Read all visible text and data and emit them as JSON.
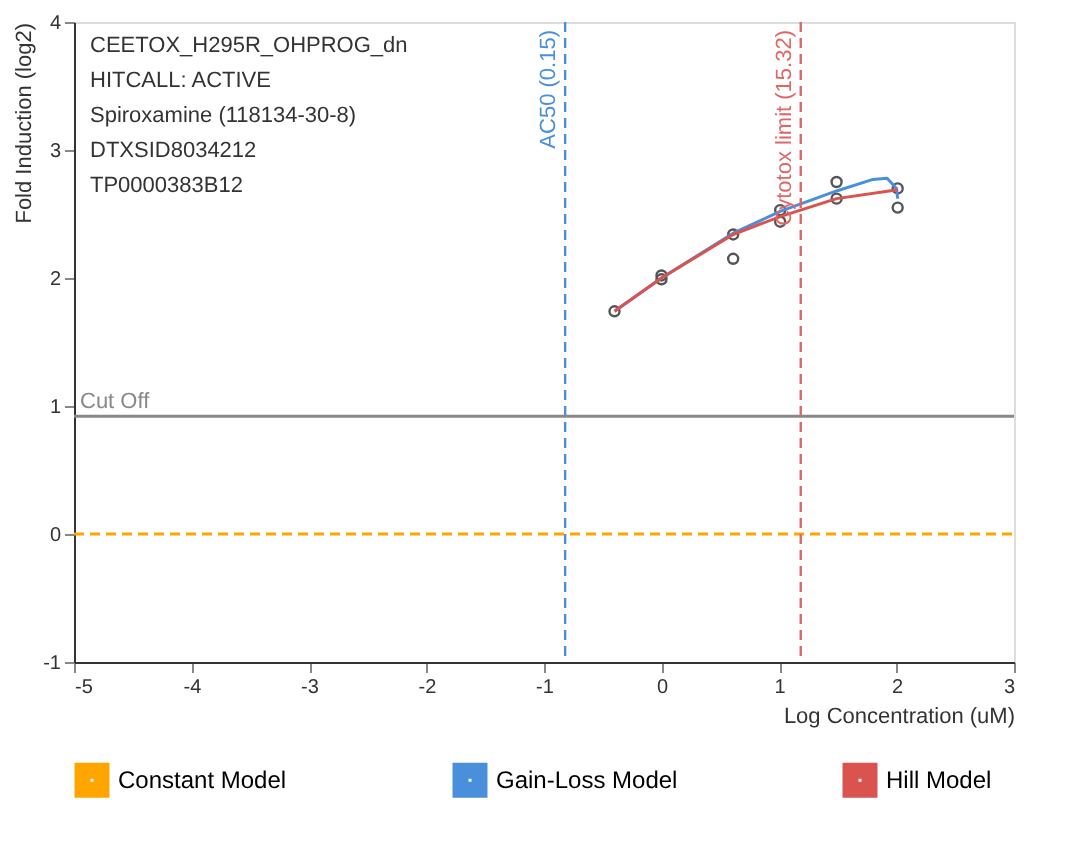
{
  "chart_data": {
    "type": "scatter",
    "xlabel": "Log Concentration (uM)",
    "ylabel": "Fold Induction (log2)",
    "xlim": [
      -5,
      3
    ],
    "xticks": [
      -5,
      -4,
      -3,
      -2,
      -1,
      0,
      1,
      2,
      3
    ],
    "ylim": [
      -1,
      4
    ],
    "yticks": [
      -1,
      0,
      1,
      2,
      3,
      4
    ],
    "series": [
      {
        "color": "#555555",
        "marker": "circle",
        "x": [
          -0.4,
          0.0,
          0.0,
          0.61,
          0.61,
          1.01,
          1.01,
          1.49,
          1.49,
          2.01,
          2.01
        ],
        "values": [
          1.74,
          2.02,
          1.99,
          2.34,
          2.15,
          2.53,
          2.44,
          2.75,
          2.62,
          2.7,
          2.55
        ]
      },
      {
        "name": "Constant Model",
        "color": "#ffa500",
        "type": "line",
        "line_style": "dashed",
        "marker": "none",
        "x": [
          -5,
          3
        ],
        "values": [
          0,
          0
        ]
      },
      {
        "name": "Gain-Loss Model",
        "color": "#4a8fdc",
        "type": "line",
        "line_style": "solid",
        "marker": "none",
        "x": [
          -0.4,
          0.0,
          0.61,
          1.01,
          1.49,
          1.8,
          1.92,
          2.0,
          2.01
        ],
        "values": [
          1.74,
          2.0,
          2.35,
          2.52,
          2.68,
          2.77,
          2.78,
          2.7,
          2.62
        ]
      },
      {
        "name": "Hill Model",
        "color": "#d9534f",
        "type": "line",
        "line_style": "solid",
        "marker": "none",
        "x": [
          -0.4,
          0.0,
          0.61,
          1.01,
          1.49,
          2.01
        ],
        "values": [
          1.74,
          2.0,
          2.34,
          2.48,
          2.62,
          2.69
        ]
      }
    ],
    "ref_lines": [
      {
        "axis": "x",
        "value": -0.82,
        "label": "AC50 (0.15)",
        "color": "#4a8fdc",
        "line_style": "dashed"
      },
      {
        "axis": "x",
        "value": 1.185,
        "label": "Cytotox limit (15.32)",
        "color": "#e06666",
        "line_style": "dashed"
      },
      {
        "axis": "y",
        "value": 0.92,
        "label": "Cut Off",
        "color": "#888888",
        "line_style": "solid"
      }
    ],
    "annotations": [
      "CEETOX_H295R_OHPROG_dn",
      "HITCALL: ACTIVE",
      "Spiroxamine (118134-30-8)",
      "DTXSID8034212",
      "TP0000383B12"
    ],
    "grid": false,
    "legend": "bottom"
  }
}
